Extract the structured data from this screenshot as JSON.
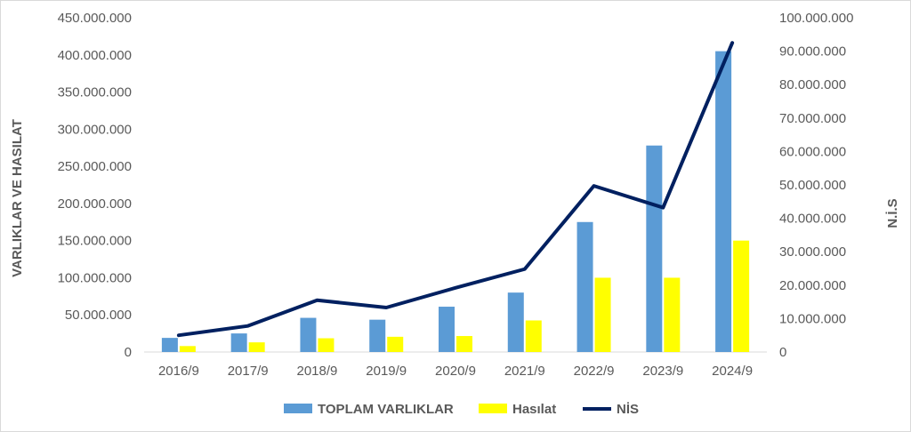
{
  "chart_data": {
    "type": "bar",
    "categories": [
      "2016/9",
      "2017/9",
      "2018/9",
      "2019/9",
      "2020/9",
      "2021/9",
      "2022/9",
      "2023/9",
      "2024/9"
    ],
    "series": [
      {
        "name": "TOPLAM VARLIKLAR",
        "type": "bar",
        "axis": "left",
        "color": "#5b9bd5",
        "values": [
          19000000,
          25000000,
          46000000,
          43500000,
          61000000,
          80000000,
          175000000,
          278000000,
          405000000
        ]
      },
      {
        "name": "Hasılat",
        "type": "bar",
        "axis": "left",
        "color": "#ffff00",
        "values": [
          8000000,
          13000000,
          18500000,
          20500000,
          21500000,
          42500000,
          100000000,
          100000000,
          150000000
        ]
      },
      {
        "name": "NİS",
        "type": "line",
        "axis": "right",
        "color": "#002060",
        "values": [
          5000000,
          7800000,
          15500000,
          13300000,
          19200000,
          24800000,
          49700000,
          43200000,
          92500000
        ]
      }
    ],
    "ylabel": "VARLIKLAR VE HASILAT",
    "ylabel_right": "N.İ.S",
    "ylim": [
      0,
      450000000
    ],
    "ylim_right": [
      0,
      100000000
    ],
    "yticks": [
      "0",
      "50.000.000",
      "100.000.000",
      "150.000.000",
      "200.000.000",
      "250.000.000",
      "300.000.000",
      "350.000.000",
      "400.000.000",
      "450.000.000"
    ],
    "yticks_right": [
      "0",
      "10.000.000",
      "20.000.000",
      "30.000.000",
      "40.000.000",
      "50.000.000",
      "60.000.000",
      "70.000.000",
      "80.000.000",
      "90.000.000",
      "100.000.000"
    ],
    "grid": false,
    "legend_position": "bottom"
  }
}
